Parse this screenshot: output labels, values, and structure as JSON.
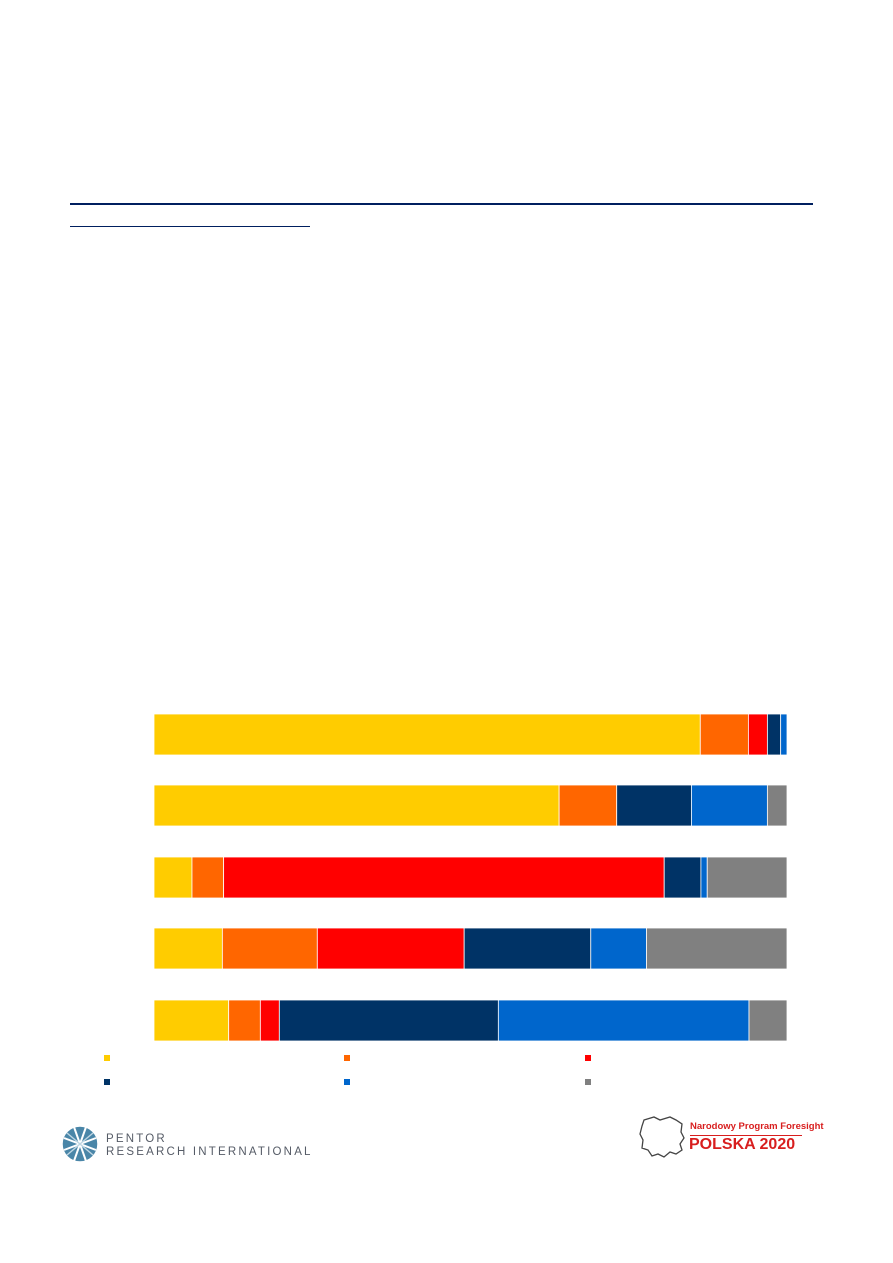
{
  "colors": {
    "rule": "#001f5f",
    "series": [
      "#ffcc00",
      "#ff6600",
      "#ff0000",
      "#003366",
      "#0066cc",
      "#808080"
    ]
  },
  "chart_data": {
    "type": "bar",
    "orientation": "horizontal",
    "stacked": true,
    "normalized": true,
    "xlim": [
      0,
      100
    ],
    "grid": false,
    "legend_position": "bottom",
    "categories": [
      "",
      "",
      "",
      "",
      ""
    ],
    "series": [
      {
        "color": "#ffcc00",
        "values": [
          86.3,
          64.0,
          6.0,
          10.8,
          11.8
        ]
      },
      {
        "color": "#ff6600",
        "values": [
          7.6,
          9.1,
          5.0,
          15.0,
          5.0
        ]
      },
      {
        "color": "#ff0000",
        "values": [
          3.0,
          0.0,
          69.6,
          23.2,
          3.0
        ]
      },
      {
        "color": "#003366",
        "values": [
          2.1,
          11.8,
          5.8,
          20.0,
          34.6
        ]
      },
      {
        "color": "#0066cc",
        "values": [
          1.0,
          12.0,
          1.0,
          8.8,
          39.6
        ]
      },
      {
        "color": "#808080",
        "values": [
          0.0,
          3.1,
          12.6,
          22.2,
          6.0
        ]
      }
    ]
  },
  "logos": {
    "left": {
      "line1": "PENTOR",
      "line2": "RESEARCH INTERNATIONAL"
    },
    "right": {
      "line1": "Narodowy Program Foresight",
      "line2": "POLSKA 2020"
    }
  }
}
